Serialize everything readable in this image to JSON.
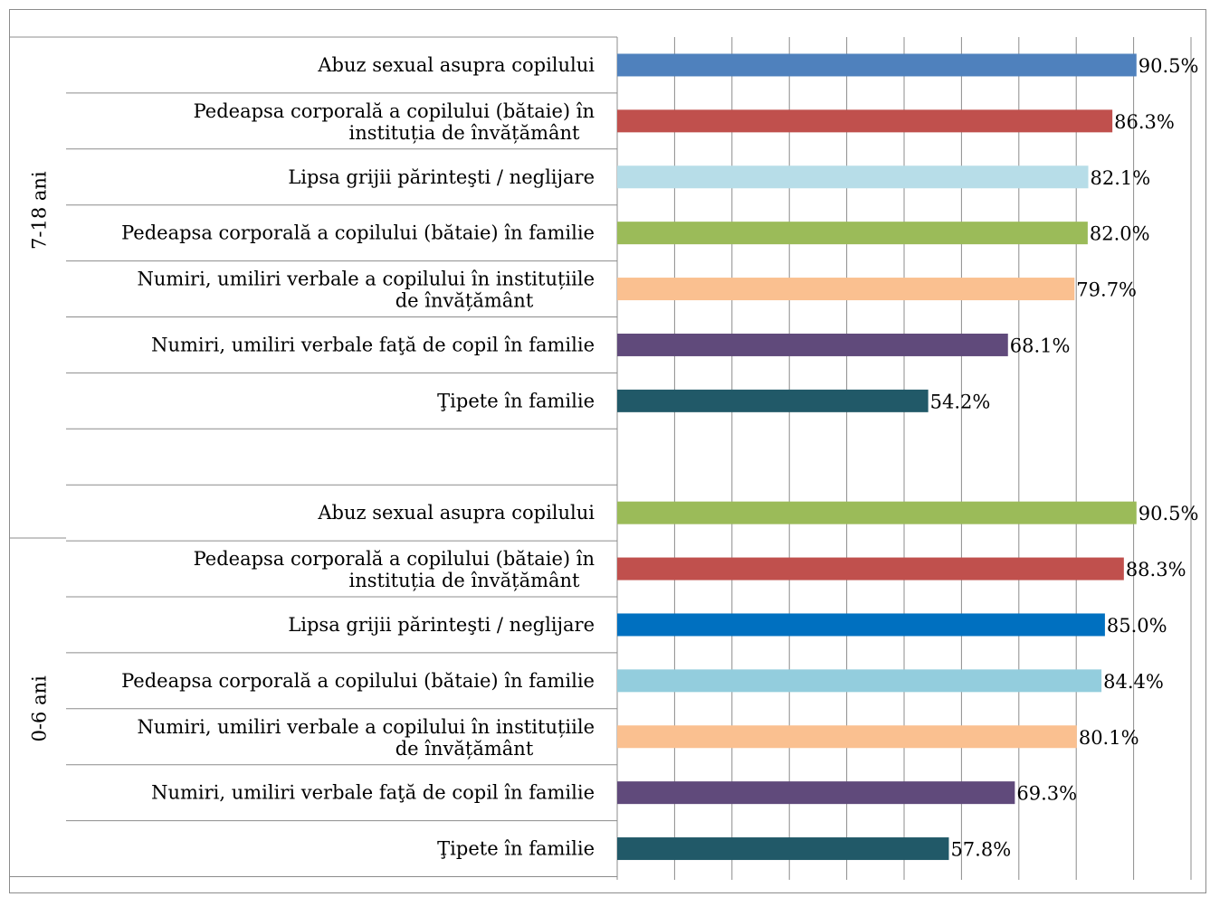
{
  "chart_data": {
    "type": "bar",
    "orientation": "horizontal",
    "xlim": [
      0,
      100
    ],
    "grid": true,
    "legend": "none",
    "groups": [
      {
        "name": "7-18 ani",
        "bars": [
          {
            "label": "Abuz sexual asupra copilului",
            "value": 90.5,
            "value_label": "90.5%",
            "color": "#4f81bd"
          },
          {
            "label": "Pedeapsa corporală a copilului (bătaie) în instituția de învățământ",
            "value": 86.3,
            "value_label": "86.3%",
            "color": "#c0504d"
          },
          {
            "label": "Lipsa grijii părinteşti / neglijare",
            "value": 82.1,
            "value_label": "82.1%",
            "color": "#b7dde8"
          },
          {
            "label": "Pedeapsa corporală a copilului (bătaie) în familie",
            "value": 82.0,
            "value_label": "82.0%",
            "color": "#9bbb59"
          },
          {
            "label": "Numiri, umiliri verbale a copilului în instituțiile de învățământ",
            "value": 79.7,
            "value_label": "79.7%",
            "color": "#fac090"
          },
          {
            "label": "Numiri, umiliri verbale faţă de copil în familie",
            "value": 68.1,
            "value_label": "68.1%",
            "color": "#604a7b"
          },
          {
            "label": "Ţipete în familie",
            "value": 54.2,
            "value_label": "54.2%",
            "color": "#215968"
          }
        ]
      },
      {
        "name": "0-6 ani",
        "bars": [
          {
            "label": "Abuz sexual asupra copilului",
            "value": 90.5,
            "value_label": "90.5%",
            "color": "#9bbb59"
          },
          {
            "label": "Pedeapsa corporală a copilului (bătaie) în instituția de învățământ",
            "value": 88.3,
            "value_label": "88.3%",
            "color": "#c0504d"
          },
          {
            "label": "Lipsa grijii părinteşti / neglijare",
            "value": 85.0,
            "value_label": "85.0%",
            "color": "#0070c0"
          },
          {
            "label": "Pedeapsa corporală a copilului (bătaie) în familie",
            "value": 84.4,
            "value_label": "84.4%",
            "color": "#93cddd"
          },
          {
            "label": "Numiri, umiliri verbale a copilului în instituțiile de învățământ",
            "value": 80.1,
            "value_label": "80.1%",
            "color": "#fac090"
          },
          {
            "label": "Numiri, umiliri verbale faţă de copil în familie",
            "value": 69.3,
            "value_label": "69.3%",
            "color": "#604a7b"
          },
          {
            "label": "Ţipete în familie",
            "value": 57.8,
            "value_label": "57.8%",
            "color": "#215968"
          }
        ]
      }
    ]
  }
}
